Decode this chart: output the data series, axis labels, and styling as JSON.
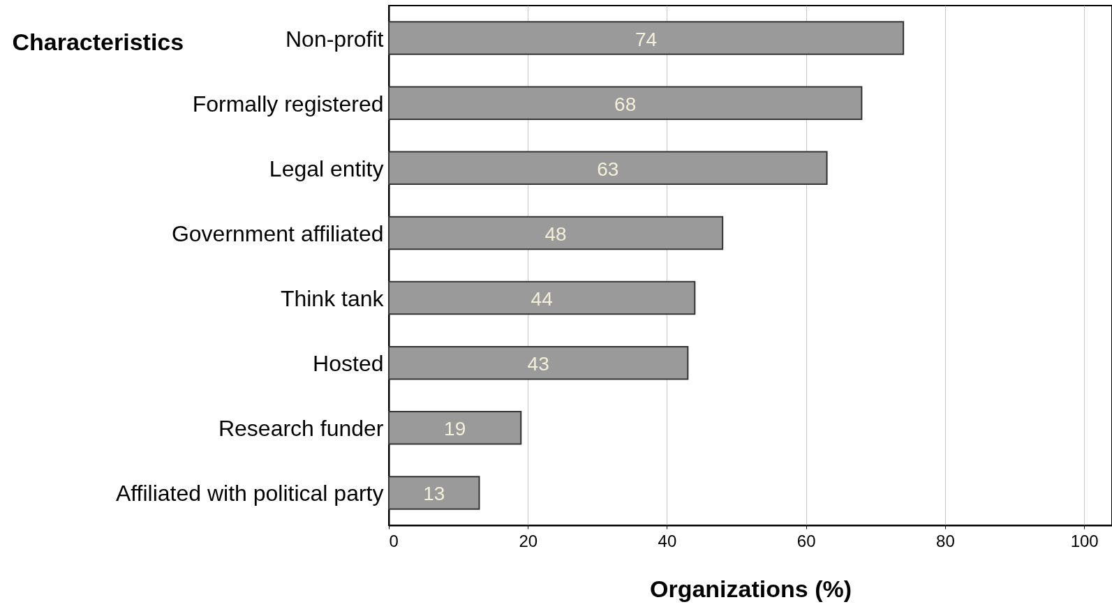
{
  "chart_data": {
    "type": "bar",
    "orientation": "horizontal",
    "ylabel": "Characteristics",
    "xlabel": "Organizations (%)",
    "categories": [
      "Non-profit",
      "Formally registered",
      "Legal entity",
      "Government affiliated",
      "Think tank",
      "Hosted",
      "Research funder",
      "Affiliated with political party"
    ],
    "values": [
      74,
      68,
      63,
      48,
      44,
      43,
      19,
      13
    ],
    "color": "#9a9a9a",
    "data_labels": true,
    "xlim": [
      0,
      104
    ],
    "xticks": [
      0,
      20,
      40,
      60,
      80,
      100
    ],
    "grid": "x"
  }
}
